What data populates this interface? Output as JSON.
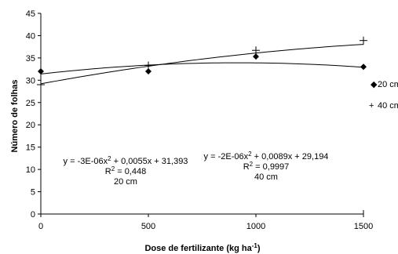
{
  "chart_data": {
    "type": "scatter",
    "xlabel": "Dose de fertilizante (kg ha",
    "xlabel_sup": "-1",
    "xlabel_end": ")",
    "ylabel": "Número de folhas",
    "xlim": [
      0,
      1500
    ],
    "ylim": [
      0,
      45
    ],
    "x_ticks": [
      "0",
      "500",
      "1000",
      "1500"
    ],
    "y_ticks": [
      "0",
      "5",
      "10",
      "15",
      "20",
      "25",
      "30",
      "35",
      "40",
      "45"
    ],
    "grid": false,
    "legend_position": "right",
    "series": [
      {
        "name": "20 cm",
        "marker": "diamond",
        "marker_symbol": "◆",
        "x": [
          0,
          500,
          1000,
          1500
        ],
        "y": [
          32.0,
          32.0,
          35.3,
          33.0
        ],
        "trend": {
          "a": -3e-06,
          "b": 0.0055,
          "c": 31.393
        },
        "equation": {
          "line1_pre": "y = -3E-06x",
          "line1_sup": "2",
          "line1_post": " + 0,0055x + 31,393",
          "r2_pre": "R",
          "r2_sup": "2",
          "r2_post": " = 0,448",
          "label": "20 cm"
        }
      },
      {
        "name": "40 cm",
        "marker": "plus",
        "marker_symbol": "+",
        "x": [
          0,
          500,
          1000,
          1500
        ],
        "y": [
          29.0,
          33.3,
          36.7,
          38.9
        ],
        "trend": {
          "a": -2e-06,
          "b": 0.0089,
          "c": 29.194
        },
        "equation": {
          "line1_pre": "y = -2E-06x",
          "line1_sup": "2",
          "line1_post": " + 0,0089x + 29,194",
          "r2_pre": "R",
          "r2_sup": "2",
          "r2_post": " = 0,9997",
          "label": "40 cm"
        }
      }
    ]
  }
}
